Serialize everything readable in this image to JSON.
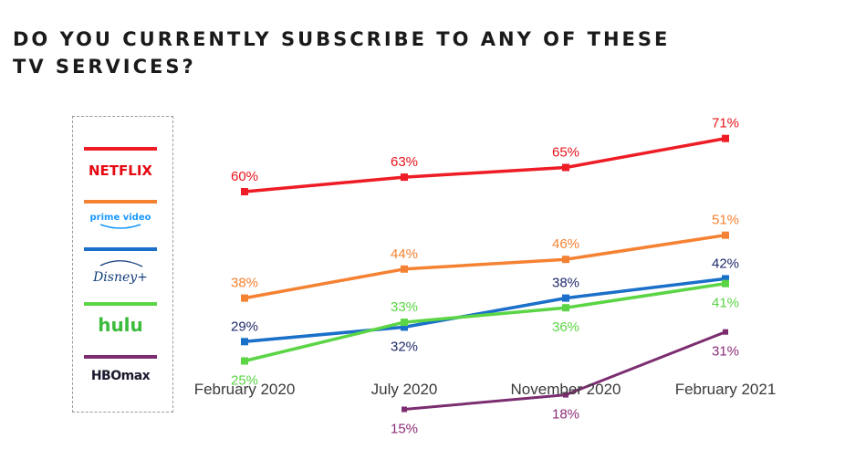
{
  "title": "DO YOU CURRENTLY SUBSCRIBE TO ANY OF THESE TV SERVICES?",
  "legend": [
    {
      "label": "NETFLIX",
      "color": "#ee1c25",
      "icon": "netflix-logo"
    },
    {
      "label": "prime video",
      "color": "#f58233",
      "icon": "prime-video-logo"
    },
    {
      "label": "Disney+",
      "color": "#1a6fc9",
      "icon": "disney-plus-logo"
    },
    {
      "label": "hulu",
      "color": "#5bd545",
      "icon": "hulu-logo"
    },
    {
      "label": "HBOmax",
      "color": "#7b2d70",
      "icon": "hbo-max-logo"
    }
  ],
  "chart_data": {
    "type": "line",
    "title": "DO YOU CURRENTLY SUBSCRIBE TO ANY OF THESE TV SERVICES?",
    "categories": [
      "February 2020",
      "July 2020",
      "November 2020",
      "February 2021"
    ],
    "unit": "%",
    "series": [
      {
        "name": "NETFLIX",
        "color": "#ee1c25",
        "label_color": "#e8141b",
        "values": [
          60,
          63,
          65,
          71
        ],
        "label_pos": [
          "above",
          "above",
          "above",
          "above"
        ]
      },
      {
        "name": "prime video",
        "color": "#f58233",
        "label_color": "#f58233",
        "values": [
          38,
          44,
          46,
          51
        ],
        "label_pos": [
          "above",
          "above",
          "above",
          "above"
        ]
      },
      {
        "name": "Disney+",
        "color": "#1a6fc9",
        "label_color": "#1f2a6b",
        "values": [
          29,
          32,
          38,
          42
        ],
        "label_pos": [
          "above",
          "below",
          "above",
          "above"
        ]
      },
      {
        "name": "hulu",
        "color": "#5bd545",
        "label_color": "#5bd545",
        "values": [
          25,
          33,
          36,
          41
        ],
        "label_pos": [
          "below",
          "above",
          "below",
          "below"
        ]
      },
      {
        "name": "HBOmax",
        "color": "#7b2d70",
        "label_color": "#8b2d78",
        "values": [
          null,
          15,
          18,
          31
        ],
        "label_pos": [
          null,
          "below",
          "below",
          "below"
        ]
      }
    ],
    "grid": false,
    "legend_position": "left"
  }
}
